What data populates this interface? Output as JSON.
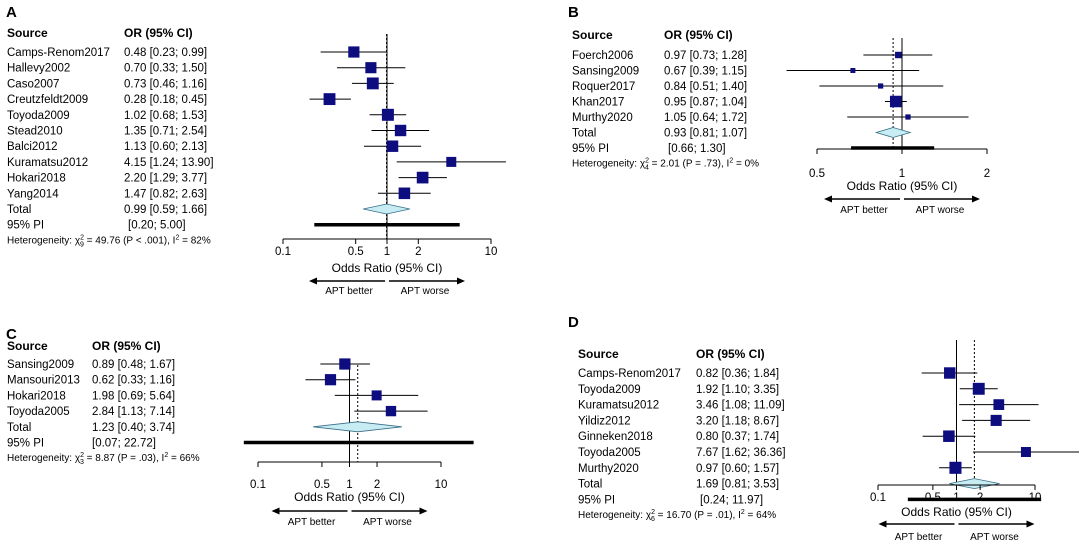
{
  "colors": {
    "marker": "#0d0d80",
    "diamond": "#c8ecf4",
    "line": "#000000"
  },
  "chart_data": [
    {
      "type": "forest",
      "panel": "A",
      "col_source": "Source",
      "col_or": "OR (95% CI)",
      "studies": [
        {
          "name": "Camps-Renom2017",
          "or": 0.48,
          "lo": 0.23,
          "hi": 0.99,
          "text": "0.48 [0.23;  0.99]"
        },
        {
          "name": "Hallevy2002",
          "or": 0.7,
          "lo": 0.33,
          "hi": 1.5,
          "text": "0.70 [0.33;  1.50]"
        },
        {
          "name": "Caso2007",
          "or": 0.73,
          "lo": 0.46,
          "hi": 1.16,
          "text": "0.73 [0.46;  1.16]"
        },
        {
          "name": "Creutzfeldt2009",
          "or": 0.28,
          "lo": 0.18,
          "hi": 0.45,
          "text": "0.28 [0.18;  0.45]"
        },
        {
          "name": "Toyoda2009",
          "or": 1.02,
          "lo": 0.68,
          "hi": 1.53,
          "text": "1.02 [0.68;  1.53]"
        },
        {
          "name": "Stead2010",
          "or": 1.35,
          "lo": 0.71,
          "hi": 2.54,
          "text": "1.35 [0.71;  2.54]"
        },
        {
          "name": "Balci2012",
          "or": 1.13,
          "lo": 0.6,
          "hi": 2.13,
          "text": "1.13 [0.60;  2.13]"
        },
        {
          "name": "Kuramatsu2012",
          "or": 4.15,
          "lo": 1.24,
          "hi": 13.9,
          "text": "4.15 [1.24; 13.90]"
        },
        {
          "name": "Hokari2018",
          "or": 2.2,
          "lo": 1.29,
          "hi": 3.77,
          "text": "2.20 [1.29;  3.77]"
        },
        {
          "name": "Yang2014",
          "or": 1.47,
          "lo": 0.82,
          "hi": 2.63,
          "text": "1.47 [0.82;  2.63]"
        }
      ],
      "total": {
        "label": "Total",
        "or": 0.99,
        "lo": 0.59,
        "hi": 1.66,
        "text": "0.99 [0.59;  1.66]"
      },
      "pi": {
        "label": "95% PI",
        "lo": 0.2,
        "hi": 5.0,
        "text": "[0.20;  5.00]"
      },
      "heterogeneity": {
        "prefix": "Heterogeneity: χ",
        "sub": "9",
        "rest": " = 49.76 (P < .001), I",
        "i2": " = 82%"
      },
      "x_axis": {
        "scale": "log",
        "ticks": [
          0.1,
          0.5,
          1,
          2,
          10
        ],
        "tick_labels": [
          "0.1",
          "0.5",
          "1",
          "2",
          "10"
        ],
        "label": "Odds Ratio (95% CI)"
      },
      "arrows": {
        "left": "APT better",
        "right": "APT worse"
      }
    },
    {
      "type": "forest",
      "panel": "B",
      "col_source": "Source",
      "col_or": "OR (95% CI)",
      "studies": [
        {
          "name": "Foerch2006",
          "or": 0.97,
          "lo": 0.73,
          "hi": 1.28,
          "text": "0.97 [0.73; 1.28]"
        },
        {
          "name": "Sansing2009",
          "or": 0.67,
          "lo": 0.39,
          "hi": 1.15,
          "text": "0.67 [0.39; 1.15]"
        },
        {
          "name": "Roquer2017",
          "or": 0.84,
          "lo": 0.51,
          "hi": 1.4,
          "text": "0.84 [0.51; 1.40]"
        },
        {
          "name": "Khan2017",
          "or": 0.95,
          "lo": 0.87,
          "hi": 1.04,
          "text": "0.95 [0.87; 1.04]"
        },
        {
          "name": "Murthy2020",
          "or": 1.05,
          "lo": 0.64,
          "hi": 1.72,
          "text": "1.05 [0.64; 1.72]"
        }
      ],
      "total": {
        "label": "Total",
        "or": 0.93,
        "lo": 0.81,
        "hi": 1.07,
        "text": "0.93 [0.81; 1.07]"
      },
      "pi": {
        "label": "95% PI",
        "lo": 0.66,
        "hi": 1.3,
        "text": "[0.66; 1.30]"
      },
      "heterogeneity": {
        "prefix": "Heterogeneity: χ",
        "sub": "4",
        "rest": " = 2.01 (P = .73), I",
        "i2": " = 0%"
      },
      "x_axis": {
        "scale": "log",
        "ticks": [
          0.5,
          1,
          2
        ],
        "tick_labels": [
          "0.5",
          "1",
          "2"
        ],
        "label": "Odds Ratio (95% CI)"
      },
      "arrows": {
        "left": "APT better",
        "right": "APT worse"
      }
    },
    {
      "type": "forest",
      "panel": "C",
      "col_source": "Source",
      "col_or": "OR (95% CI)",
      "studies": [
        {
          "name": "Sansing2009",
          "or": 0.89,
          "lo": 0.48,
          "hi": 1.67,
          "text": "0.89 [0.48;  1.67]"
        },
        {
          "name": "Mansouri2013",
          "or": 0.62,
          "lo": 0.33,
          "hi": 1.16,
          "text": "0.62 [0.33;  1.16]"
        },
        {
          "name": "Hokari2018",
          "or": 1.98,
          "lo": 0.69,
          "hi": 5.64,
          "text": "1.98 [0.69;  5.64]"
        },
        {
          "name": "Toyoda2005",
          "or": 2.84,
          "lo": 1.13,
          "hi": 7.14,
          "text": "2.84 [1.13;  7.14]"
        }
      ],
      "total": {
        "label": "Total",
        "or": 1.23,
        "lo": 0.4,
        "hi": 3.74,
        "text": "1.23 [0.40;  3.74]"
      },
      "pi": {
        "label": "95% PI",
        "lo": 0.07,
        "hi": 22.72,
        "text": "[0.07; 22.72]"
      },
      "heterogeneity": {
        "prefix": "Heterogeneity: χ",
        "sub": "3",
        "rest": " = 8.87 (P = .03), I",
        "i2": " = 66%"
      },
      "x_axis": {
        "scale": "log",
        "ticks": [
          0.1,
          0.5,
          1,
          2,
          10
        ],
        "tick_labels": [
          "0.1",
          "0.5",
          "1",
          "2",
          "10"
        ],
        "label": "Odds Ratio (95% CI)"
      },
      "arrows": {
        "left": "APT better",
        "right": "APT worse"
      }
    },
    {
      "type": "forest",
      "panel": "D",
      "col_source": "Source",
      "col_or": "OR (95% CI)",
      "studies": [
        {
          "name": "Camps-Renom2017",
          "or": 0.82,
          "lo": 0.36,
          "hi": 1.84,
          "text": "0.82 [0.36;  1.84]"
        },
        {
          "name": "Toyoda2009",
          "or": 1.92,
          "lo": 1.1,
          "hi": 3.35,
          "text": "1.92 [1.10;  3.35]"
        },
        {
          "name": "Kuramatsu2012",
          "or": 3.46,
          "lo": 1.08,
          "hi": 11.09,
          "text": "3.46 [1.08; 11.09]"
        },
        {
          "name": "Yildiz2012",
          "or": 3.2,
          "lo": 1.18,
          "hi": 8.67,
          "text": "3.20 [1.18;  8.67]"
        },
        {
          "name": "Ginneken2018",
          "or": 0.8,
          "lo": 0.37,
          "hi": 1.74,
          "text": "0.80 [0.37;  1.74]"
        },
        {
          "name": "Toyoda2005",
          "or": 7.67,
          "lo": 1.62,
          "hi": 36.36,
          "text": "7.67 [1.62; 36.36]"
        },
        {
          "name": "Murthy2020",
          "or": 0.97,
          "lo": 0.6,
          "hi": 1.57,
          "text": "0.97 [0.60;  1.57]"
        }
      ],
      "total": {
        "label": "Total",
        "or": 1.69,
        "lo": 0.81,
        "hi": 3.53,
        "text": "1.69 [0.81;  3.53]"
      },
      "pi": {
        "label": "95% PI",
        "lo": 0.24,
        "hi": 11.97,
        "text": "[0.24; 11.97]"
      },
      "heterogeneity": {
        "prefix": "Heterogeneity: χ",
        "sub": "6",
        "rest": " = 16.70 (P = .01), I",
        "i2": " = 64%"
      },
      "x_axis": {
        "scale": "log",
        "ticks": [
          0.1,
          0.5,
          1,
          2,
          10
        ],
        "tick_labels": [
          "0.1",
          "0.5",
          "1",
          "2",
          "10"
        ],
        "label": "Odds Ratio (95% CI)"
      },
      "arrows": {
        "left": "APT better",
        "right": "APT worse"
      }
    }
  ]
}
